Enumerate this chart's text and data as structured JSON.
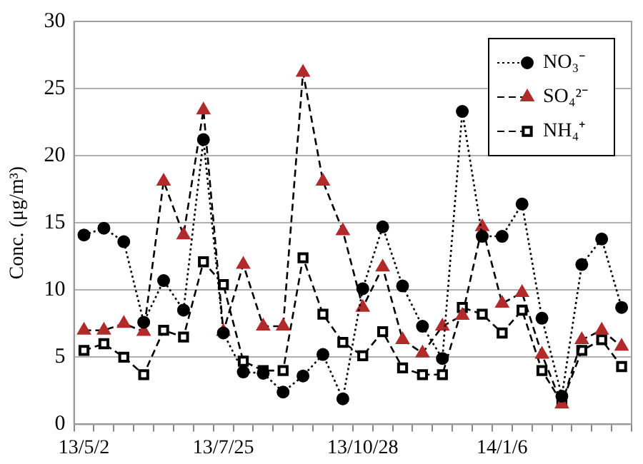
{
  "chart_data": {
    "type": "line",
    "ylabel": "Conc. (μg/m³)",
    "categories": [
      "13/5/2",
      null,
      null,
      null,
      null,
      null,
      null,
      "13/7/25",
      null,
      null,
      null,
      null,
      null,
      null,
      "13/10/28",
      null,
      null,
      null,
      null,
      null,
      null,
      "14/1/6",
      null,
      null,
      null,
      null,
      null,
      null
    ],
    "series": [
      {
        "name": "NO₃⁻",
        "color": "#000000",
        "marker": "circle",
        "line_style": "dotted",
        "values": [
          14.1,
          14.6,
          13.6,
          7.6,
          10.7,
          8.5,
          21.2,
          6.8,
          3.9,
          3.8,
          2.4,
          3.6,
          5.2,
          1.9,
          10.1,
          14.7,
          10.3,
          7.3,
          4.9,
          23.3,
          14.0,
          14.0,
          16.4,
          7.9,
          2.1,
          11.9,
          13.8,
          8.7
        ]
      },
      {
        "name": "SO₄²⁻",
        "color": "#b22a2a",
        "marker": "triangle",
        "line_style": "dashed",
        "values": [
          7.0,
          7.0,
          7.5,
          6.9,
          18.1,
          14.1,
          23.4,
          6.9,
          11.9,
          7.3,
          7.3,
          26.2,
          18.1,
          14.4,
          8.7,
          11.7,
          6.3,
          5.3,
          7.3,
          8.1,
          14.7,
          9.0,
          9.8,
          5.2,
          1.5,
          6.3,
          7.0,
          5.8
        ]
      },
      {
        "name": "NH₄⁺",
        "color": "#000000",
        "marker": "square",
        "line_style": "dashed",
        "values": [
          5.5,
          6.0,
          5.0,
          3.7,
          7.0,
          6.5,
          12.1,
          10.4,
          4.7,
          4.0,
          4.0,
          12.4,
          8.2,
          6.1,
          5.1,
          6.9,
          4.2,
          3.7,
          3.7,
          8.7,
          8.2,
          6.8,
          8.5,
          4.0,
          1.6,
          5.5,
          6.3,
          4.3
        ]
      }
    ],
    "ylim": [
      0,
      30
    ],
    "yticks": [
      0,
      5,
      10,
      15,
      20,
      25,
      30
    ],
    "grid": "y",
    "legend": "top right"
  }
}
